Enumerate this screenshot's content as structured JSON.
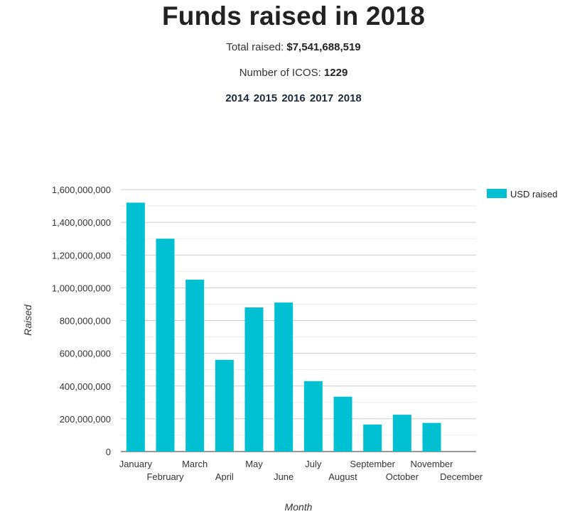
{
  "header": {
    "title": "Funds raised in 2018",
    "total_label": "Total raised:",
    "total_value": "$7,541,688,519",
    "icos_label": "Number of ICOS:",
    "icos_value": "1229"
  },
  "year_nav": [
    "2014",
    "2015",
    "2016",
    "2017",
    "2018"
  ],
  "chart_data": {
    "type": "bar",
    "categories": [
      "January",
      "February",
      "March",
      "April",
      "May",
      "June",
      "July",
      "August",
      "September",
      "October",
      "November",
      "December"
    ],
    "series": [
      {
        "name": "USD raised",
        "color": "#00c0d1",
        "values": [
          1520000000,
          1300000000,
          1050000000,
          560000000,
          880000000,
          910000000,
          430000000,
          335000000,
          165000000,
          225000000,
          175000000,
          0
        ]
      }
    ],
    "xlabel": "Month",
    "ylabel": "Raised",
    "ylim": [
      0,
      1600000000
    ],
    "yticks": [
      "0",
      "200,000,000",
      "400,000,000",
      "600,000,000",
      "800,000,000",
      "1,000,000,000",
      "1,200,000,000",
      "1,400,000,000",
      "1,600,000,000"
    ],
    "grid": true,
    "legend": "top-right"
  }
}
